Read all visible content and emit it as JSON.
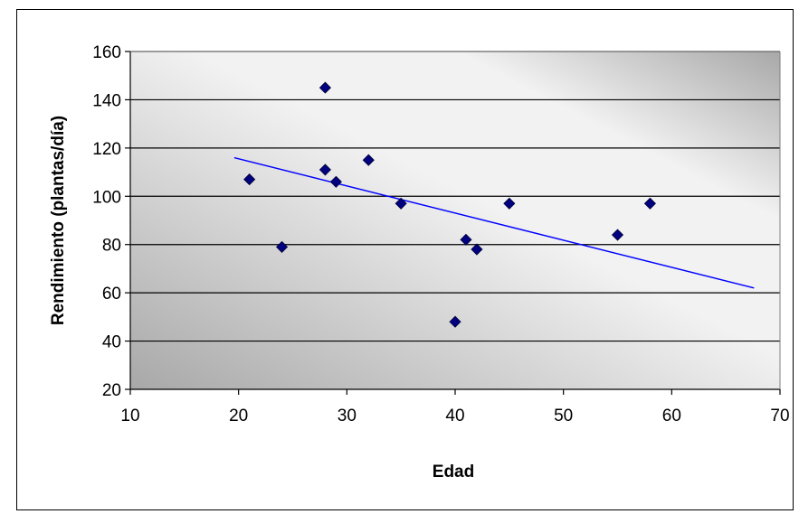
{
  "chart_data": {
    "type": "scatter",
    "title": "",
    "xlabel": "Edad",
    "ylabel": "Rendimiento  (plantas/día)",
    "xlim": [
      10,
      70
    ],
    "ylim": [
      20,
      160
    ],
    "xticks": [
      10,
      20,
      30,
      40,
      50,
      60,
      70
    ],
    "yticks": [
      20,
      40,
      60,
      80,
      100,
      120,
      140,
      160
    ],
    "grid": "horizontal",
    "legend": "none",
    "series": [
      {
        "x": [
          21,
          24,
          28,
          28,
          29,
          32,
          35,
          40,
          41,
          42,
          45,
          55,
          58
        ],
        "y": [
          107,
          79,
          145,
          111,
          106,
          115,
          97,
          48,
          82,
          78,
          97,
          84,
          97
        ],
        "marker": "diamond",
        "color": "#000080"
      }
    ],
    "trendline": {
      "type": "linear",
      "x": [
        19.6,
        67.6
      ],
      "y": [
        116,
        62
      ],
      "color": "#0000FF"
    },
    "plot_background": "gradient #a8a8a8 to #ffffff"
  }
}
